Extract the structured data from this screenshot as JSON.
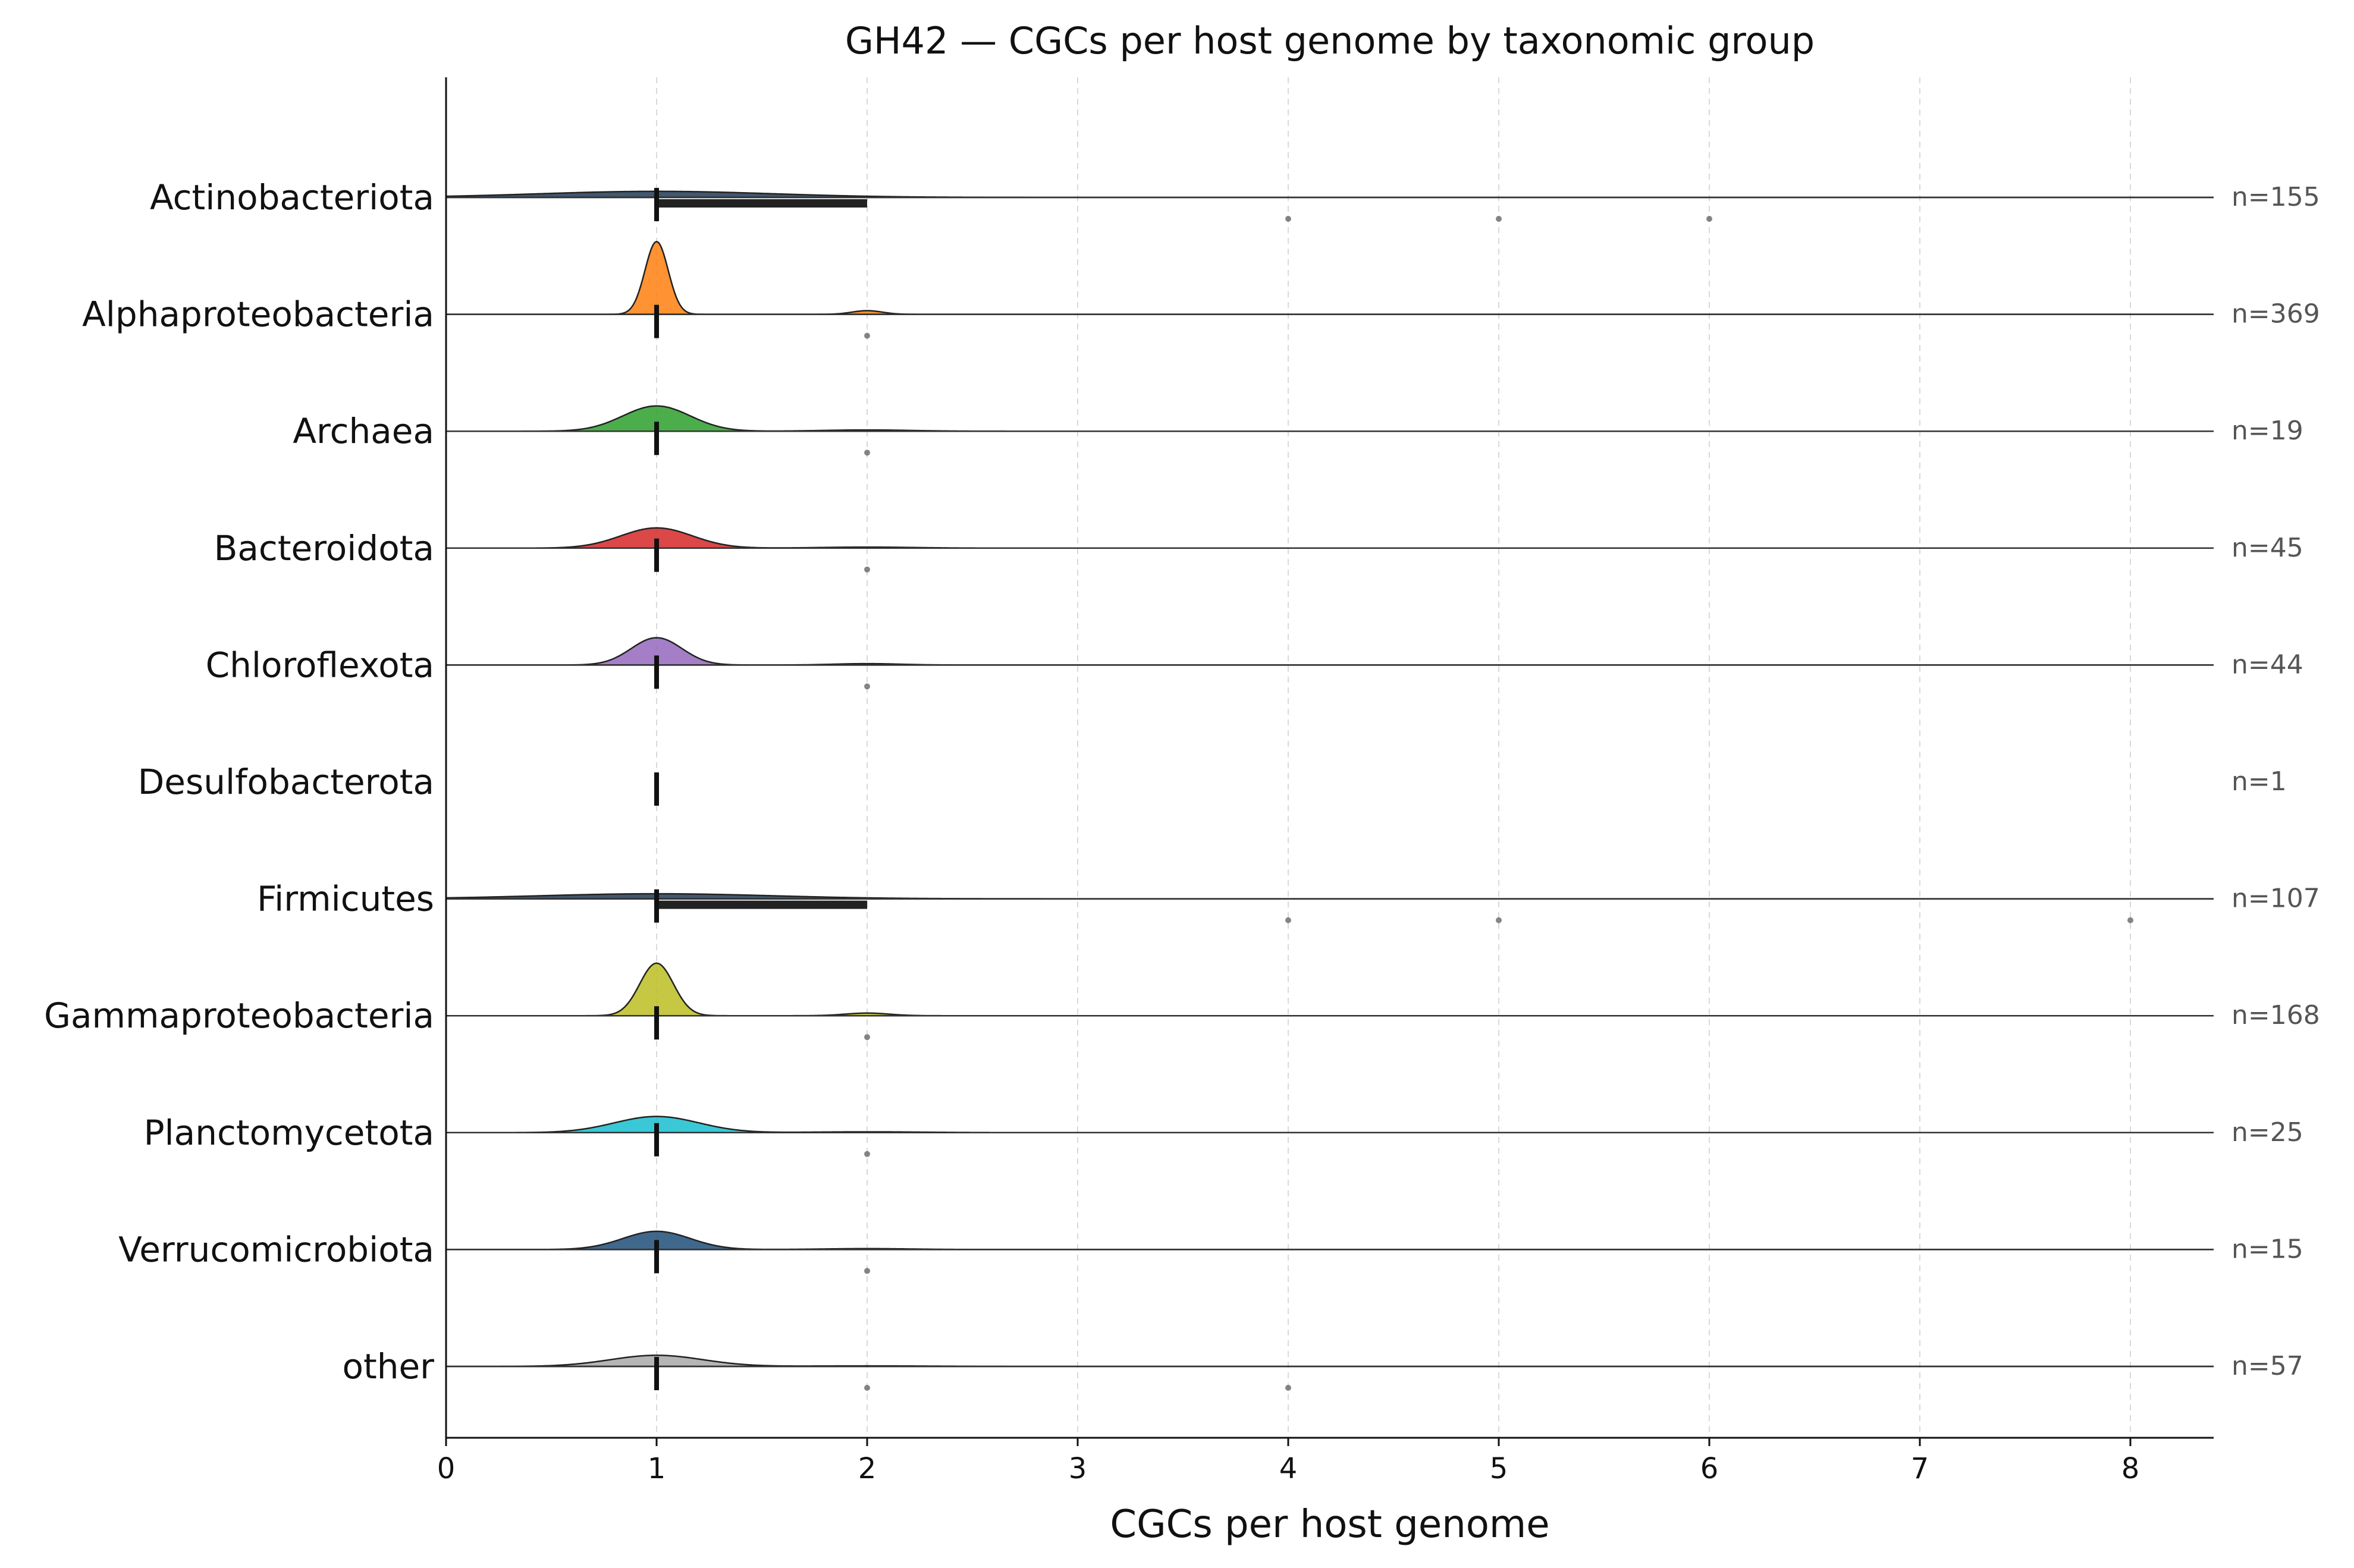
{
  "chart_data": {
    "type": "ridgeline",
    "title": "GH42 — CGCs per host genome by taxonomic group",
    "xlabel": "CGCs per host genome",
    "ylabel": "",
    "xlim": [
      0,
      8.4
    ],
    "xticks": [
      "0",
      "1",
      "2",
      "3",
      "4",
      "5",
      "6",
      "7",
      "8"
    ],
    "grid": "vertical dashed",
    "groups": [
      {
        "name": "Actinobacteriota",
        "n_label": "n=155",
        "color": "#1f3b57",
        "kde_peak": 1.0,
        "kde_width": 0.55,
        "kde_height": 0.06,
        "median": 1,
        "iqr": [
          1,
          2
        ],
        "outliers": [
          4,
          5,
          6
        ]
      },
      {
        "name": "Alphaproteobacteria",
        "n_label": "n=369",
        "color": "#ff7f0e",
        "kde_peak": 1.0,
        "kde_width": 0.055,
        "kde_height": 0.72,
        "median": 1,
        "iqr": [
          1,
          1
        ],
        "outliers": [
          2
        ]
      },
      {
        "name": "Archaea",
        "n_label": "n=19",
        "color": "#2ca02c",
        "kde_peak": 1.0,
        "kde_width": 0.16,
        "kde_height": 0.25,
        "median": 1,
        "iqr": [
          1,
          1
        ],
        "outliers": [
          2
        ]
      },
      {
        "name": "Bacteroidota",
        "n_label": "n=45",
        "color": "#d62728",
        "kde_peak": 1.0,
        "kde_width": 0.17,
        "kde_height": 0.2,
        "median": 1,
        "iqr": [
          1,
          1
        ],
        "outliers": [
          2
        ]
      },
      {
        "name": "Chloroflexota",
        "n_label": "n=44",
        "color": "#9467bd",
        "kde_peak": 1.0,
        "kde_width": 0.12,
        "kde_height": 0.27,
        "median": 1,
        "iqr": [
          1,
          1
        ],
        "outliers": [
          2
        ]
      },
      {
        "name": "Desulfobacterota",
        "n_label": "n=1",
        "color": "#8c564b",
        "kde_peak": 1.0,
        "kde_width": 0,
        "kde_height": 0,
        "median": 1,
        "iqr": [
          1,
          1
        ],
        "outliers": []
      },
      {
        "name": "Firmicutes",
        "n_label": "n=107",
        "color": "#1f3b57",
        "kde_peak": 1.0,
        "kde_width": 0.55,
        "kde_height": 0.05,
        "median": 1,
        "iqr": [
          1,
          2
        ],
        "outliers": [
          4,
          5,
          8
        ]
      },
      {
        "name": "Gammaproteobacteria",
        "n_label": "n=168",
        "color": "#bcbd22",
        "kde_peak": 1.0,
        "kde_width": 0.08,
        "kde_height": 0.52,
        "median": 1,
        "iqr": [
          1,
          1
        ],
        "outliers": [
          2
        ]
      },
      {
        "name": "Planctomycetota",
        "n_label": "n=25",
        "color": "#17becf",
        "kde_peak": 1.0,
        "kde_width": 0.2,
        "kde_height": 0.16,
        "median": 1,
        "iqr": [
          1,
          1
        ],
        "outliers": [
          2
        ]
      },
      {
        "name": "Verrucomicrobiota",
        "n_label": "n=15",
        "color": "#1f4e79",
        "kde_peak": 1.0,
        "kde_width": 0.16,
        "kde_height": 0.18,
        "median": 1,
        "iqr": [
          1,
          1
        ],
        "outliers": [
          2
        ]
      },
      {
        "name": "other",
        "n_label": "n=57",
        "color": "#a8a8a8",
        "kde_peak": 1.0,
        "kde_width": 0.22,
        "kde_height": 0.11,
        "median": 1,
        "iqr": [
          1,
          1
        ],
        "outliers": [
          2,
          4
        ]
      }
    ]
  }
}
